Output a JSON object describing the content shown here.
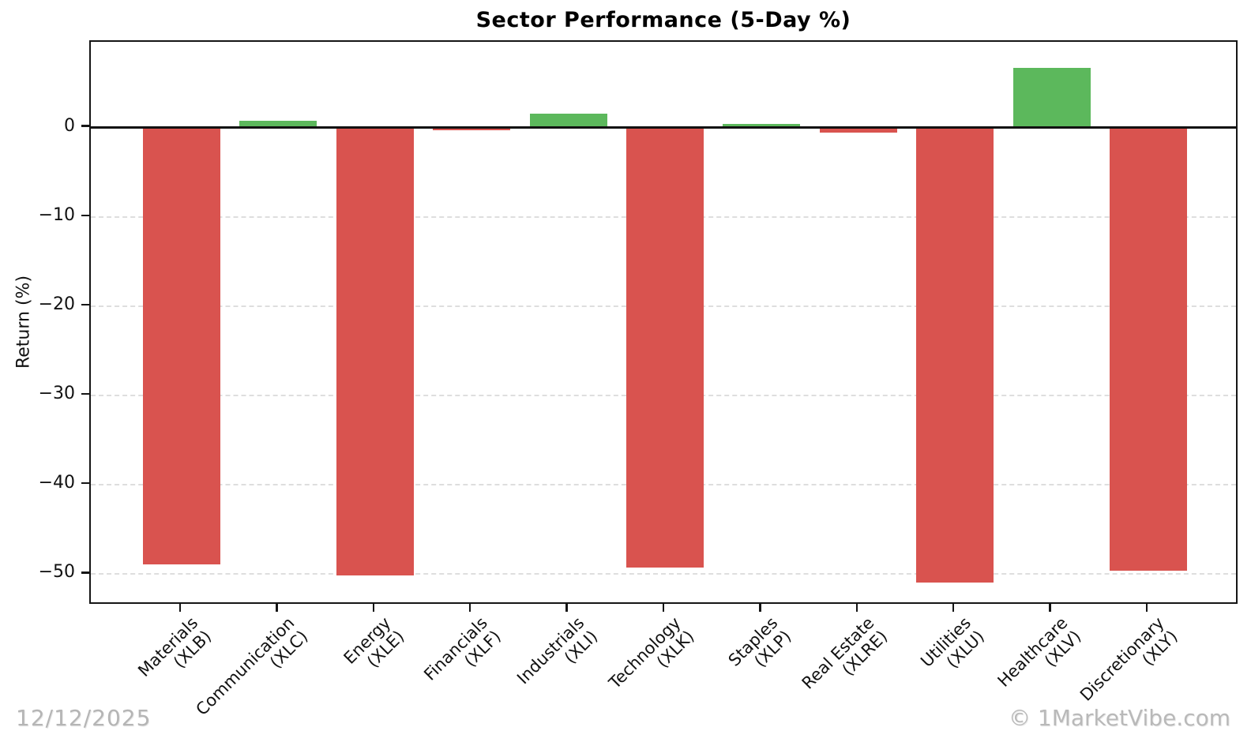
{
  "figure": {
    "date_label": "12/12/2025",
    "watermark": "© 1MarketVibe.com"
  },
  "chart_data": {
    "type": "bar",
    "title": "Sector Performance (5-Day %)",
    "xlabel": "",
    "ylabel": "Return (%)",
    "categories": [
      {
        "name": "Materials",
        "ticker": "(XLB)"
      },
      {
        "name": "Communication",
        "ticker": "(XLC)"
      },
      {
        "name": "Energy",
        "ticker": "(XLE)"
      },
      {
        "name": "Financials",
        "ticker": "(XLF)"
      },
      {
        "name": "Industrials",
        "ticker": "(XLI)"
      },
      {
        "name": "Technology",
        "ticker": "(XLK)"
      },
      {
        "name": "Staples",
        "ticker": "(XLP)"
      },
      {
        "name": "Real Estate",
        "ticker": "(XLRE)"
      },
      {
        "name": "Utilities",
        "ticker": "(XLU)"
      },
      {
        "name": "Healthcare",
        "ticker": "(XLV)"
      },
      {
        "name": "Discretionary",
        "ticker": "(XLY)"
      }
    ],
    "values": [
      -48.9,
      0.8,
      -50.1,
      -0.3,
      1.6,
      -49.3,
      0.4,
      -0.6,
      -50.9,
      6.7,
      -49.6
    ],
    "yticks": [
      0,
      -10,
      -20,
      -30,
      -40,
      -50
    ],
    "ylim": [
      -53.5,
      9.6
    ],
    "xlim": [
      -0.94,
      10.94
    ],
    "bar_width_frac": 0.8,
    "grid": {
      "axis": "y",
      "style": "dashed",
      "color": "#dedede"
    },
    "legend": "none",
    "colors": {
      "positive": "#5cb85c",
      "negative": "#d9534f"
    }
  }
}
